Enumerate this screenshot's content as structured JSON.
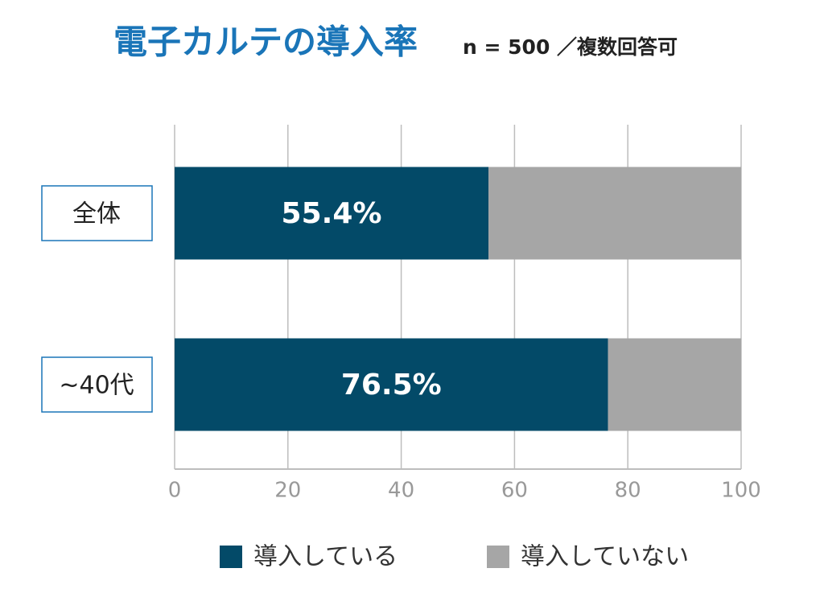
{
  "chart_data": {
    "type": "stacked-bar",
    "orientation": "horizontal",
    "title": "電子カルテの導入率",
    "subtitle": "n = 500 ／複数回答可",
    "categories": [
      "全体",
      "~40代"
    ],
    "series": [
      {
        "name": "導入している",
        "color": "#034a68",
        "values": [
          55.4,
          76.5
        ],
        "value_labels": [
          "55.4%",
          "76.5%"
        ]
      },
      {
        "name": "導入していない",
        "color": "#a6a6a6",
        "values": [
          44.6,
          23.5
        ]
      }
    ],
    "xlim": [
      0,
      100
    ],
    "xticks": [
      0,
      20,
      40,
      60,
      80,
      100
    ],
    "grid": true,
    "legend": "bottom"
  }
}
